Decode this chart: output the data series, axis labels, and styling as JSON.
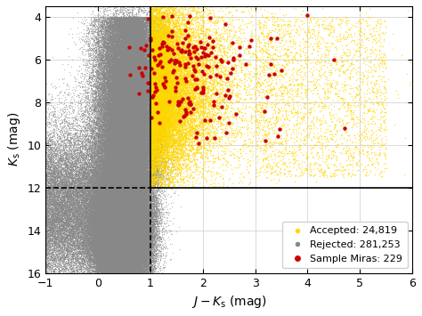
{
  "title": "",
  "xlabel": "$J - K_\\mathrm{s}$ (mag)",
  "ylabel": "$K_\\mathrm{s}$ (mag)",
  "xlim": [
    -1,
    6
  ],
  "ylim": [
    16,
    3.5
  ],
  "xticks": [
    -1,
    0,
    1,
    2,
    3,
    4,
    5,
    6
  ],
  "yticks": [
    4,
    6,
    8,
    10,
    12,
    14,
    16
  ],
  "vline_x": 1.0,
  "hline_y": 12.0,
  "accepted_color": "#FFD700",
  "rejected_color": "#888888",
  "miras_color": "#CC0000",
  "legend_labels": [
    "Accepted: 24,819",
    "Rejected: 281,253",
    "Sample Miras: 229"
  ],
  "point_size_rejected": 0.8,
  "point_size_accepted": 1.2,
  "point_size_miras": 10,
  "alpha_rejected": 0.55,
  "alpha_accepted": 0.7,
  "alpha_miras": 1.0,
  "random_seed": 42,
  "n_rejected": 281253,
  "n_accepted": 24819,
  "n_miras": 229,
  "background_color": "#ffffff",
  "grid_color": "#cccccc",
  "figsize": [
    4.74,
    3.55
  ],
  "dpi": 100
}
